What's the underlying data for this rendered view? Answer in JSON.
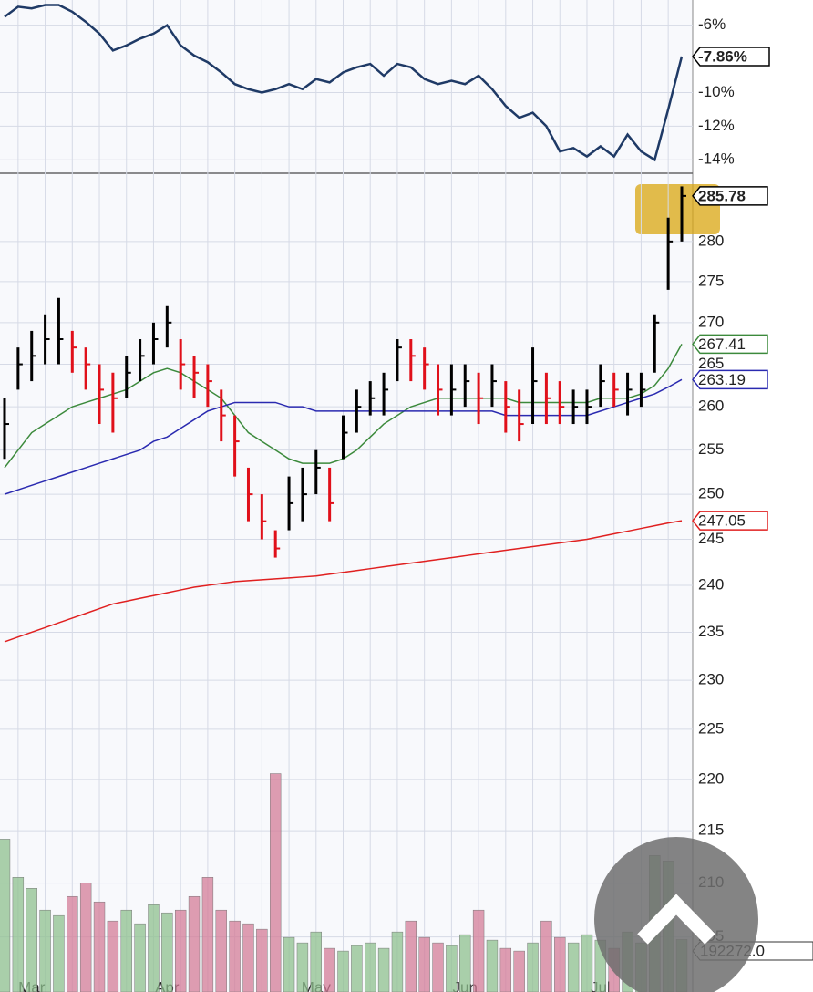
{
  "chart_data": [
    {
      "type": "line",
      "ylim": [
        -14.8,
        -4.5
      ],
      "yticks": [
        {
          "value": -6,
          "label": "-6%"
        },
        {
          "value": -10,
          "label": "-10%"
        },
        {
          "value": -12,
          "label": "-12%"
        },
        {
          "value": -14,
          "label": "-14%"
        }
      ],
      "series": [
        {
          "color": "#1f3a66",
          "values": [
            -5.5,
            -4.9,
            -5.0,
            -4.8,
            -4.8,
            -5.2,
            -5.8,
            -6.5,
            -7.5,
            -7.2,
            -6.8,
            -6.5,
            -6.0,
            -7.2,
            -7.8,
            -8.2,
            -8.8,
            -9.5,
            -9.8,
            -10,
            -9.8,
            -9.5,
            -9.8,
            -9.2,
            -9.4,
            -8.8,
            -8.5,
            -8.3,
            -9.0,
            -8.3,
            -8.5,
            -9.2,
            -9.5,
            -9.3,
            -9.5,
            -9.0,
            -9.8,
            -10.8,
            -11.5,
            -11.2,
            -12.0,
            -13.5,
            -13.3,
            -13.8,
            -13.2,
            -13.8,
            -12.5,
            -13.5,
            -14.0,
            -11.0,
            -7.86
          ],
          "value_labels": [
            null,
            null,
            null,
            null,
            null,
            null,
            null,
            null,
            null,
            null,
            null,
            null,
            null,
            null,
            null,
            null,
            null,
            null,
            null,
            null,
            null,
            null,
            null,
            null,
            null,
            null,
            null,
            null,
            null,
            null,
            null,
            null,
            null,
            null,
            null,
            null,
            null,
            null,
            null,
            null,
            null,
            null,
            null,
            null,
            null,
            null,
            null,
            null,
            null,
            null,
            "-7.86%"
          ]
        }
      ]
    },
    {
      "type": "ohlc",
      "log_scale": true,
      "ylim": [
        200,
        288.7
      ],
      "yticks": [
        205,
        210,
        215,
        220,
        225,
        230,
        235,
        240,
        245,
        250,
        255,
        260,
        265,
        270,
        275,
        280
      ],
      "categories": [
        null,
        null,
        "Mar",
        null,
        null,
        null,
        null,
        null,
        null,
        null,
        null,
        null,
        "Apr",
        null,
        null,
        null,
        null,
        null,
        null,
        null,
        null,
        null,
        null,
        "May",
        null,
        null,
        null,
        null,
        null,
        null,
        null,
        null,
        null,
        null,
        "Jun",
        null,
        null,
        null,
        null,
        null,
        null,
        null,
        null,
        null,
        "Jul",
        null,
        null,
        null,
        null,
        null,
        null
      ],
      "up_color": "#000000",
      "down_color": "#e0101a",
      "high": [
        261,
        267,
        269,
        271,
        273,
        269,
        267,
        265,
        264,
        266,
        268,
        270,
        272,
        268,
        266,
        265,
        262,
        259,
        253,
        250,
        246,
        252,
        253,
        255,
        253,
        259,
        262,
        263,
        264,
        268,
        268,
        267,
        265,
        265,
        265,
        264,
        265,
        263,
        262,
        267,
        264,
        263,
        262,
        262,
        265,
        264,
        264,
        264,
        271,
        283,
        287
      ],
      "low": [
        254,
        262,
        263,
        265,
        265,
        264,
        262,
        258,
        257,
        261,
        263,
        265,
        267,
        262,
        261,
        260,
        256,
        252,
        247,
        245,
        243,
        246,
        247,
        250,
        247,
        254,
        257,
        259,
        259,
        263,
        263,
        262,
        259,
        259,
        260,
        258,
        260,
        257,
        256,
        258,
        258,
        258,
        258,
        258,
        260,
        260,
        259,
        260,
        264,
        274,
        280
      ],
      "close": [
        258,
        265,
        266,
        268,
        268,
        267,
        265,
        262,
        261,
        264,
        266,
        268,
        270,
        265,
        264,
        263,
        259,
        256,
        250,
        247,
        244,
        249,
        250,
        253,
        249,
        257,
        260,
        261,
        262,
        267,
        266,
        265,
        262,
        262,
        263,
        261,
        263,
        260,
        258,
        263,
        261,
        260,
        260,
        260,
        263,
        262,
        262,
        262,
        270,
        280,
        285.78
      ],
      "series": [
        {
          "color": "#3c8a3c",
          "values": [
            253,
            255,
            257,
            258,
            259,
            260,
            260.5,
            261,
            261.5,
            262,
            263,
            264,
            264.5,
            264,
            263,
            262,
            261,
            259,
            257,
            256,
            255,
            254,
            253.5,
            253.5,
            253.5,
            254,
            255,
            256.5,
            258,
            259,
            260,
            260.5,
            261,
            261,
            261,
            261,
            261,
            261,
            260.5,
            260.5,
            260.5,
            260.5,
            260.5,
            260.5,
            261,
            261,
            261,
            261.5,
            262.5,
            264.5,
            267.41
          ]
        },
        {
          "color": "#2a2ab0",
          "values": [
            250,
            250.5,
            251,
            251.5,
            252,
            252.5,
            253,
            253.5,
            254,
            254.5,
            255,
            256,
            256.5,
            257.5,
            258.5,
            259.5,
            260,
            260.5,
            260.5,
            260.5,
            260.5,
            260,
            260,
            259.5,
            259.5,
            259.5,
            259.5,
            259.5,
            259.5,
            259.5,
            259.5,
            259.5,
            259.5,
            259.5,
            259.5,
            259.5,
            259.5,
            259,
            259,
            259,
            259,
            259,
            259,
            259,
            259.5,
            260,
            260.5,
            261,
            261.5,
            262.3,
            263.19
          ]
        },
        {
          "color": "#e02020",
          "values": [
            234,
            234.5,
            235,
            235.5,
            236,
            236.5,
            237,
            237.5,
            238,
            238.3,
            238.6,
            238.9,
            239.2,
            239.5,
            239.8,
            240,
            240.2,
            240.4,
            240.5,
            240.6,
            240.7,
            240.8,
            240.9,
            241,
            241.2,
            241.4,
            241.6,
            241.8,
            242,
            242.2,
            242.4,
            242.6,
            242.8,
            243,
            243.2,
            243.4,
            243.6,
            243.8,
            244,
            244.2,
            244.4,
            244.6,
            244.8,
            245,
            245.3,
            245.6,
            245.9,
            246.2,
            246.5,
            246.8,
            247.05
          ]
        }
      ],
      "volume_ylim": [
        0,
        3000000
      ],
      "volume": {
        "values": [
          560000,
          420000,
          380000,
          300000,
          280000,
          350000,
          400000,
          330000,
          260000,
          300000,
          250000,
          320000,
          290000,
          300000,
          350000,
          420000,
          300000,
          260000,
          250000,
          230000,
          800000,
          200000,
          180000,
          220000,
          160000,
          150000,
          170000,
          180000,
          160000,
          220000,
          260000,
          200000,
          180000,
          170000,
          210000,
          300000,
          190000,
          160000,
          150000,
          180000,
          260000,
          200000,
          180000,
          210000,
          190000,
          160000,
          220000,
          180000,
          500000,
          480000,
          192272
        ],
        "value_labels": [
          null,
          null,
          null,
          null,
          null,
          null,
          null,
          null,
          null,
          null,
          null,
          null,
          null,
          null,
          null,
          null,
          null,
          null,
          null,
          null,
          null,
          null,
          null,
          null,
          null,
          null,
          null,
          null,
          null,
          null,
          null,
          null,
          null,
          null,
          null,
          null,
          null,
          null,
          null,
          null,
          null,
          null,
          null,
          null,
          null,
          null,
          null,
          null,
          null,
          null,
          "192272.0"
        ]
      }
    }
  ]
}
